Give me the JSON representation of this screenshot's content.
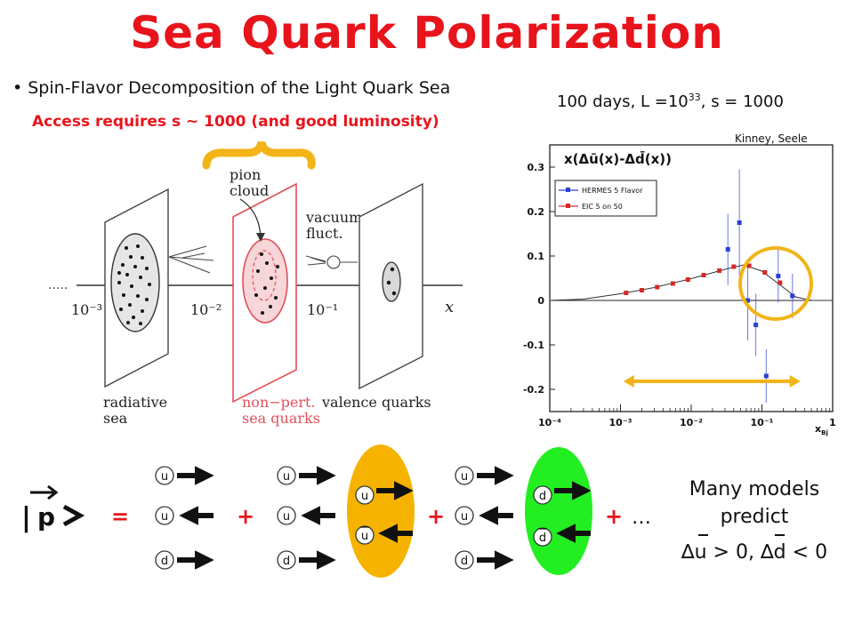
{
  "title": "Sea Quark Polarization",
  "bullet": "Spin-Flavor Decomposition of the Light Quark Sea",
  "access_note": "Access requires s ~ 1000 (and good luminosity)",
  "run_conditions": {
    "prefix": "100 days, L =10",
    "exponent": "33",
    "suffix": ", s = 1000"
  },
  "credit": "Kinney, Seele",
  "diagram": {
    "ticks": [
      "10⁻³",
      "10⁻²",
      "10⁻¹"
    ],
    "axis_label": "x",
    "dots": ".....",
    "pion_cloud": [
      "pion",
      "cloud"
    ],
    "vacuum_fluct": [
      "vacuum",
      "fluct."
    ],
    "radiative_sea": [
      "radiative",
      "sea"
    ],
    "nonpert_sea": [
      "non−pert.",
      "sea quarks"
    ],
    "valence_quarks": "valence quarks",
    "colors": {
      "red": "#e0505a",
      "nonpert_fill": "#f6d6d8",
      "ellipse_fill": "#e6e6e6"
    }
  },
  "chart_data": {
    "type": "scatter",
    "title": "x(Δū(x)-Δd̄(x))",
    "xlabel": "x_Bj",
    "x_scale": "log",
    "xlim": [
      0.0001,
      1
    ],
    "ylim": [
      -0.25,
      0.35
    ],
    "x_ticks": [
      "10⁻⁴",
      "10⁻³",
      "10⁻²",
      "10⁻¹",
      "1"
    ],
    "y_ticks": [
      "0.3",
      "0.2",
      "0.1",
      "0",
      "-0.1",
      "-0.2"
    ],
    "y_tick_values": [
      0.3,
      0.2,
      0.1,
      0,
      -0.1,
      -0.2
    ],
    "legend": [
      "HERMES 5 Flavor",
      "EIC 5 on 50"
    ],
    "series": [
      {
        "name": "HERMES 5 Flavor",
        "color": "#2b3fd6",
        "points": [
          {
            "x": 0.033,
            "y": 0.115,
            "err": 0.08
          },
          {
            "x": 0.048,
            "y": 0.175,
            "err": 0.12
          },
          {
            "x": 0.063,
            "y": 0.0,
            "err": 0.09
          },
          {
            "x": 0.082,
            "y": -0.055,
            "err": 0.07
          },
          {
            "x": 0.115,
            "y": -0.17,
            "err": 0.06
          },
          {
            "x": 0.17,
            "y": 0.055,
            "err": 0.06
          },
          {
            "x": 0.27,
            "y": 0.01,
            "err": 0.05
          }
        ]
      },
      {
        "name": "EIC 5 on 50",
        "color": "#d62828",
        "points": [
          {
            "x": 0.0012,
            "y": 0.017,
            "err": 0.0
          },
          {
            "x": 0.002,
            "y": 0.023,
            "err": 0.0
          },
          {
            "x": 0.0033,
            "y": 0.03,
            "err": 0.0
          },
          {
            "x": 0.0055,
            "y": 0.038,
            "err": 0.0
          },
          {
            "x": 0.009,
            "y": 0.047,
            "err": 0.0
          },
          {
            "x": 0.015,
            "y": 0.057,
            "err": 0.0
          },
          {
            "x": 0.025,
            "y": 0.067,
            "err": 0.0
          },
          {
            "x": 0.04,
            "y": 0.076,
            "err": 0.0
          },
          {
            "x": 0.066,
            "y": 0.078,
            "err": 0.0
          },
          {
            "x": 0.11,
            "y": 0.063,
            "err": 0.0
          },
          {
            "x": 0.18,
            "y": 0.04,
            "err": 0.0
          }
        ]
      }
    ],
    "curve": [
      {
        "x": 0.0001,
        "y": 0.0
      },
      {
        "x": 0.0003,
        "y": 0.003
      },
      {
        "x": 0.001,
        "y": 0.015
      },
      {
        "x": 0.003,
        "y": 0.029
      },
      {
        "x": 0.01,
        "y": 0.049
      },
      {
        "x": 0.03,
        "y": 0.07
      },
      {
        "x": 0.055,
        "y": 0.08
      },
      {
        "x": 0.1,
        "y": 0.066
      },
      {
        "x": 0.18,
        "y": 0.035
      },
      {
        "x": 0.3,
        "y": 0.008
      },
      {
        "x": 0.5,
        "y": 0.0
      },
      {
        "x": 1.0,
        "y": 0.0
      }
    ],
    "highlight_range": [
      0.0011,
      0.35
    ],
    "highlight_color": "#f2b418"
  },
  "equation": {
    "state_label": "p",
    "equals": "=",
    "plus": "+",
    "ellipsis": "…",
    "quark_u": "u",
    "quark_d": "d",
    "colors": {
      "orange": "#f5b300",
      "green": "#22ee22"
    }
  },
  "models": {
    "line1": "Many models",
    "line2": "predict",
    "line3": "∆u > 0, ∆d < 0"
  }
}
